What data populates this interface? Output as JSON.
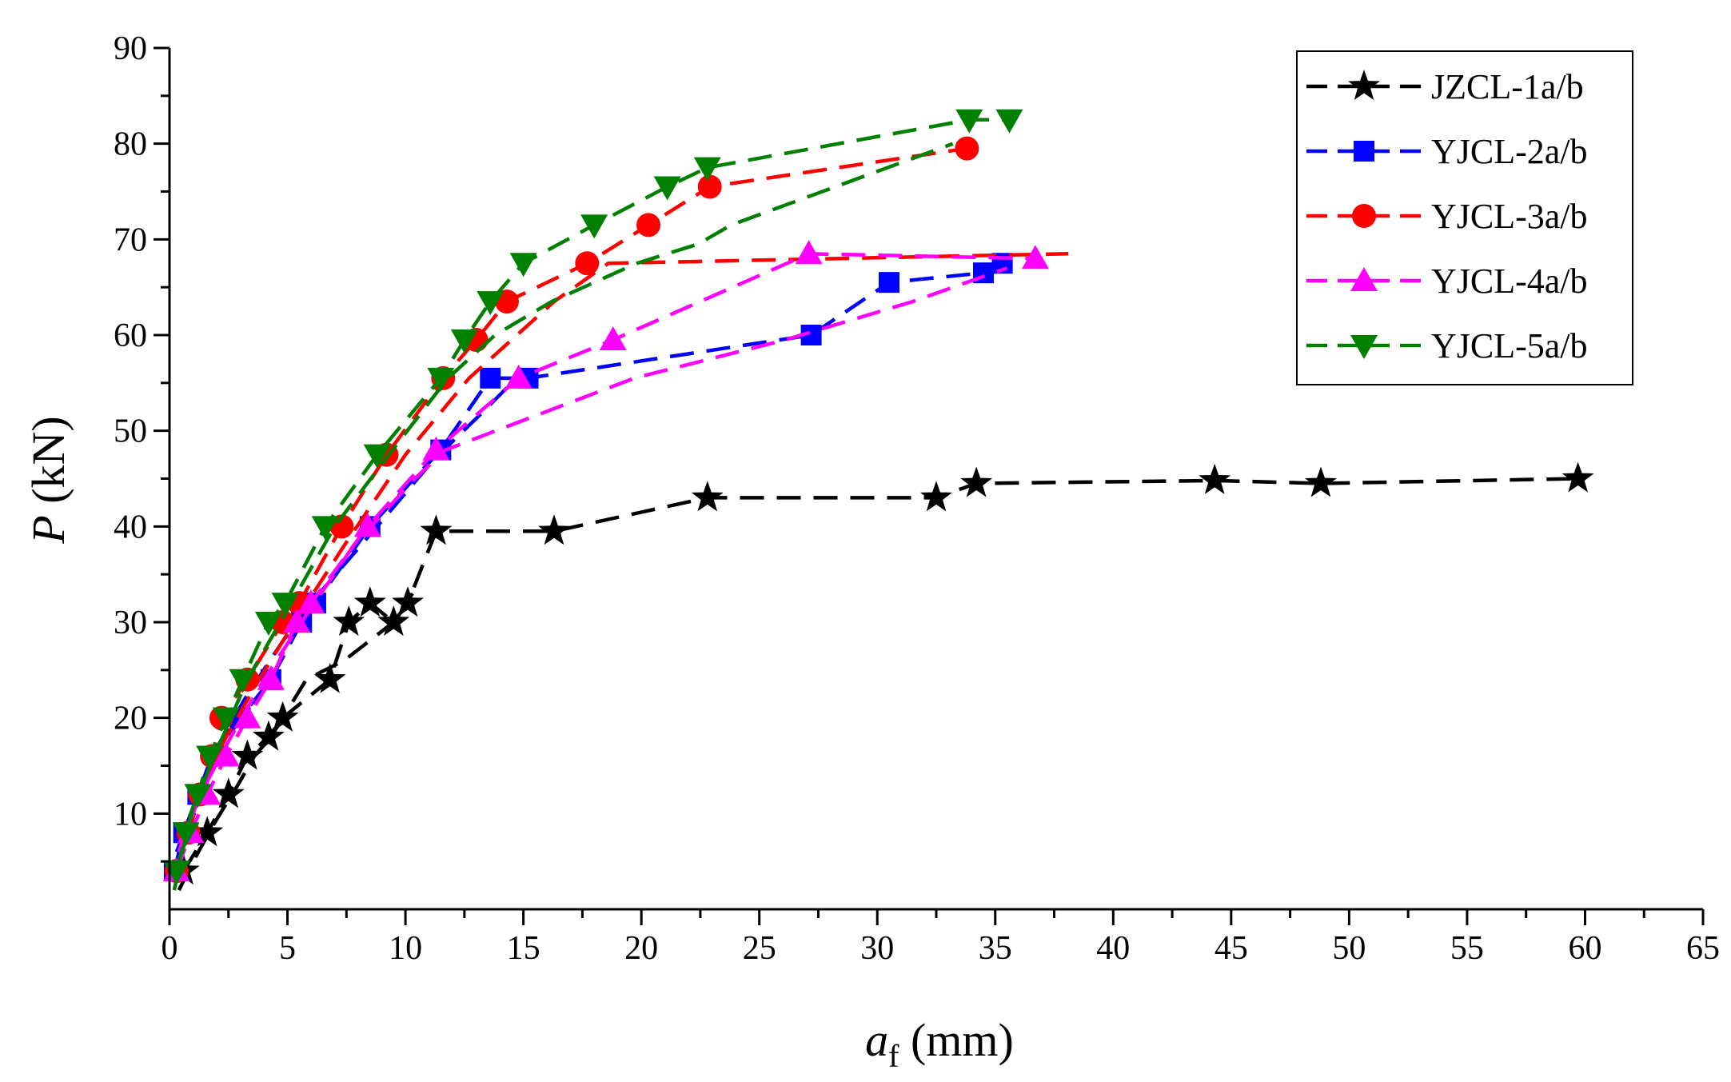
{
  "chart_data": {
    "type": "line",
    "title": "",
    "xlabel": {
      "var": "a",
      "sub": "f",
      "unit": " (mm)"
    },
    "ylabel": {
      "var": "P",
      "unit": " (kN)"
    },
    "xlim": [
      0,
      65
    ],
    "ylim": [
      0,
      90
    ],
    "xticks": [
      0,
      5,
      10,
      15,
      20,
      25,
      30,
      35,
      40,
      45,
      50,
      55,
      60,
      65
    ],
    "yticks": [
      10,
      20,
      30,
      40,
      50,
      60,
      70,
      80,
      90
    ],
    "grid": false,
    "legend_position": "top-right",
    "series": [
      {
        "name": "JZCL-1a/b",
        "color": "#000000",
        "marker": "star",
        "curves": [
          [
            [
              0.6,
              4
            ],
            [
              1.6,
              8
            ],
            [
              2.5,
              12
            ],
            [
              3.3,
              16
            ],
            [
              4.2,
              18
            ],
            [
              4.8,
              20
            ],
            [
              6.8,
              24
            ],
            [
              7.6,
              30
            ],
            [
              8.5,
              32
            ],
            [
              9.5,
              30
            ],
            [
              10.1,
              32
            ],
            [
              11.3,
              39.5
            ],
            [
              16.3,
              39.5
            ],
            [
              22.8,
              43
            ],
            [
              32.5,
              43
            ],
            [
              34.2,
              44.5
            ],
            [
              44.3,
              44.8
            ],
            [
              48.8,
              44.5
            ],
            [
              59.7,
              45
            ]
          ],
          [
            [
              0.4,
              2
            ],
            [
              1,
              5
            ],
            [
              1.9,
              9
            ],
            [
              2.9,
              13
            ],
            [
              3.6,
              16
            ],
            [
              4.3,
              18
            ],
            [
              5.8,
              24
            ],
            [
              7.4,
              26
            ],
            [
              9.5,
              30
            ],
            [
              10.3,
              33
            ]
          ]
        ]
      },
      {
        "name": "YJCL-2a/b",
        "color": "#0000ff",
        "marker": "square",
        "curves": [
          [
            [
              0.2,
              4
            ],
            [
              0.6,
              8
            ],
            [
              1.2,
              12
            ],
            [
              2,
              16
            ],
            [
              3,
              20
            ],
            [
              4.3,
              24
            ],
            [
              5.6,
              30
            ],
            [
              6.2,
              32
            ],
            [
              8.5,
              40
            ],
            [
              11.5,
              48
            ],
            [
              13.6,
              55.5
            ],
            [
              15.2,
              55.5
            ],
            [
              27.2,
              60
            ],
            [
              30.5,
              65.5
            ],
            [
              34.5,
              66.5
            ],
            [
              35.3,
              67.5
            ]
          ],
          [
            [
              0.3,
              6
            ],
            [
              0.9,
              10
            ],
            [
              1.8,
              16
            ],
            [
              3.2,
              22
            ],
            [
              4.8,
              28
            ],
            [
              6,
              32
            ],
            [
              8.8,
              40
            ],
            [
              11.2,
              47
            ],
            [
              13.3,
              52
            ],
            [
              14.5,
              55
            ]
          ]
        ]
      },
      {
        "name": "YJCL-3a/b",
        "color": "#ff0000",
        "marker": "circle",
        "curves": [
          [
            [
              0.3,
              4
            ],
            [
              0.8,
              8
            ],
            [
              1.3,
              12
            ],
            [
              1.8,
              16
            ],
            [
              2.2,
              20
            ],
            [
              3.3,
              24
            ],
            [
              4.8,
              30
            ],
            [
              5.5,
              32
            ],
            [
              7.3,
              40
            ],
            [
              9.2,
              47.5
            ],
            [
              11.6,
              55.5
            ],
            [
              13,
              59.5
            ],
            [
              14.3,
              63.5
            ],
            [
              17.7,
              67.5
            ],
            [
              20.3,
              71.5
            ],
            [
              22.9,
              75.5
            ],
            [
              33.8,
              79.5
            ]
          ],
          [
            [
              0.4,
              6
            ],
            [
              1.2,
              12
            ],
            [
              2.4,
              18
            ],
            [
              3.8,
              24
            ],
            [
              5.3,
              30
            ],
            [
              7.4,
              38
            ],
            [
              10,
              47.5
            ],
            [
              12.7,
              55.5
            ],
            [
              14.5,
              59.5
            ],
            [
              16.3,
              63.5
            ],
            [
              18.6,
              67.5
            ],
            [
              38.1,
              68.5
            ]
          ]
        ]
      },
      {
        "name": "YJCL-4a/b",
        "color": "#ff00ff",
        "marker": "triangle-up",
        "curves": [
          [
            [
              0.3,
              4
            ],
            [
              0.9,
              8
            ],
            [
              1.6,
              12
            ],
            [
              2.4,
              16
            ],
            [
              3.3,
              20
            ],
            [
              4.3,
              24
            ],
            [
              5.4,
              30
            ],
            [
              6,
              32
            ],
            [
              8.4,
              40
            ],
            [
              11.3,
              48
            ],
            [
              14.8,
              55.5
            ],
            [
              18.8,
              59.5
            ],
            [
              27.1,
              68.5
            ],
            [
              36.7,
              68
            ]
          ],
          [
            [
              0.4,
              6
            ],
            [
              1.3,
              12
            ],
            [
              2.6,
              18
            ],
            [
              4,
              24
            ],
            [
              5.6,
              30
            ],
            [
              7.8,
              38
            ],
            [
              10.4,
              45
            ],
            [
              11.7,
              48
            ],
            [
              19.7,
              55.5
            ],
            [
              26.1,
              59.5
            ],
            [
              31.5,
              63.5
            ],
            [
              35.5,
              67
            ]
          ]
        ]
      },
      {
        "name": "YJCL-5a/b",
        "color": "#008000",
        "marker": "triangle-down",
        "curves": [
          [
            [
              0.3,
              4
            ],
            [
              0.7,
              8
            ],
            [
              1.2,
              12
            ],
            [
              1.7,
              16
            ],
            [
              2.4,
              20
            ],
            [
              3.1,
              24
            ],
            [
              4.2,
              30
            ],
            [
              4.9,
              32
            ],
            [
              6.6,
              40
            ],
            [
              8.8,
              47.5
            ],
            [
              11.5,
              55.5
            ],
            [
              12.5,
              59.5
            ],
            [
              13.6,
              63.5
            ],
            [
              15,
              67.5
            ],
            [
              18,
              71.5
            ],
            [
              21.1,
              75.5
            ],
            [
              22.8,
              77.5
            ],
            [
              33.9,
              82.5
            ],
            [
              35.6,
              82.5
            ]
          ],
          [
            [
              0.2,
              2
            ],
            [
              0.9,
              10
            ],
            [
              1.9,
              16
            ],
            [
              3.3,
              24
            ],
            [
              4.7,
              30
            ],
            [
              7,
              40
            ],
            [
              9.3,
              47.5
            ],
            [
              11.8,
              55.5
            ],
            [
              13.8,
              60
            ],
            [
              16.2,
              63.5
            ],
            [
              19.8,
              67.5
            ],
            [
              22.4,
              69.5
            ],
            [
              23.8,
              71.5
            ],
            [
              33.2,
              80
            ]
          ]
        ]
      }
    ]
  }
}
